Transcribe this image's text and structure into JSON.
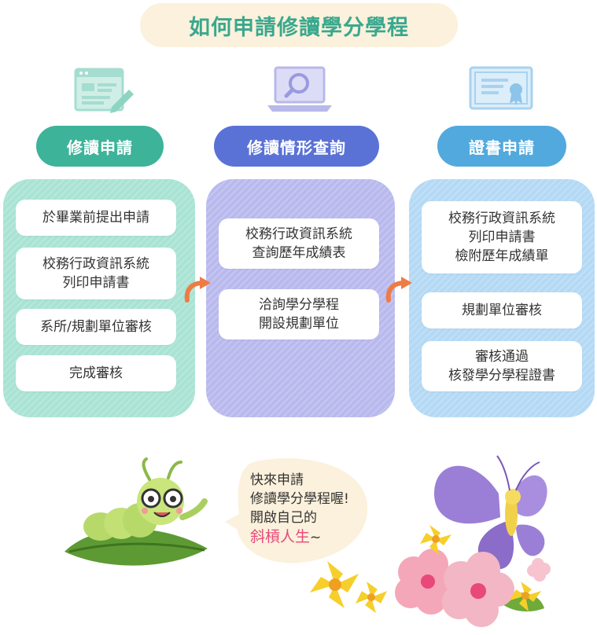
{
  "title": "如何申請修讀學分學程",
  "columns": [
    {
      "icon": "application-form-icon",
      "heading": "修讀申請",
      "steps": [
        "於畢業前提出申請",
        "校務行政資訊系統\n列印申請書",
        "系所/規劃單位審核",
        "完成審核"
      ]
    },
    {
      "icon": "laptop-search-icon",
      "heading": "修讀情形查詢",
      "steps": [
        "校務行政資訊系統\n查詢歷年成績表",
        "洽詢學分學程\n開設規劃單位"
      ]
    },
    {
      "icon": "certificate-icon",
      "heading": "證書申請",
      "steps": [
        "校務行政資訊系統\n列印申請書\n檢附歷年成績單",
        "規劃單位審核",
        "審核通過\n核發學分學程證書"
      ]
    }
  ],
  "bubble": {
    "line1": "快來申請",
    "line2": "修讀學分學程喔!",
    "line3": "開啟自己的",
    "highlight": "斜槓人生",
    "tail": "~"
  },
  "colors": {
    "title_text": "#3aa88e",
    "title_bg": "#fbf1dc",
    "col1_accent": "#3db39a",
    "col1_panel": "#a8e3d3",
    "col2_accent": "#5a72d6",
    "col2_panel": "#b9b9ee",
    "col3_accent": "#52a9dd",
    "col3_panel": "#b4d9f5",
    "arrow": "#ee7c45",
    "highlight": "#e8487a"
  }
}
